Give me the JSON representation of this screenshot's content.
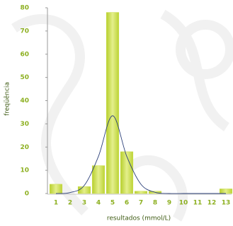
{
  "chart_data": {
    "type": "bar",
    "x_label": "resultados (mmol/L)",
    "y_label": "freqüência",
    "categories": [
      "1",
      "2",
      "3",
      "4",
      "5",
      "6",
      "7",
      "8",
      "9",
      "10",
      "11",
      "12",
      "13"
    ],
    "series": [
      {
        "type": "bar",
        "color": "#c9dc48",
        "values": [
          4,
          0,
          3,
          12,
          78,
          18,
          1,
          1,
          0,
          0,
          0,
          0,
          2
        ]
      },
      {
        "type": "line",
        "color": "#2b3f78",
        "values": [
          0,
          0.4,
          3.5,
          16,
          33.5,
          16,
          4,
          0.5,
          0,
          0,
          0,
          0,
          0
        ]
      }
    ],
    "ylim": [
      0,
      80
    ],
    "yticks": [
      0,
      10,
      20,
      30,
      40,
      50,
      60,
      70,
      80
    ],
    "grid": false
  }
}
